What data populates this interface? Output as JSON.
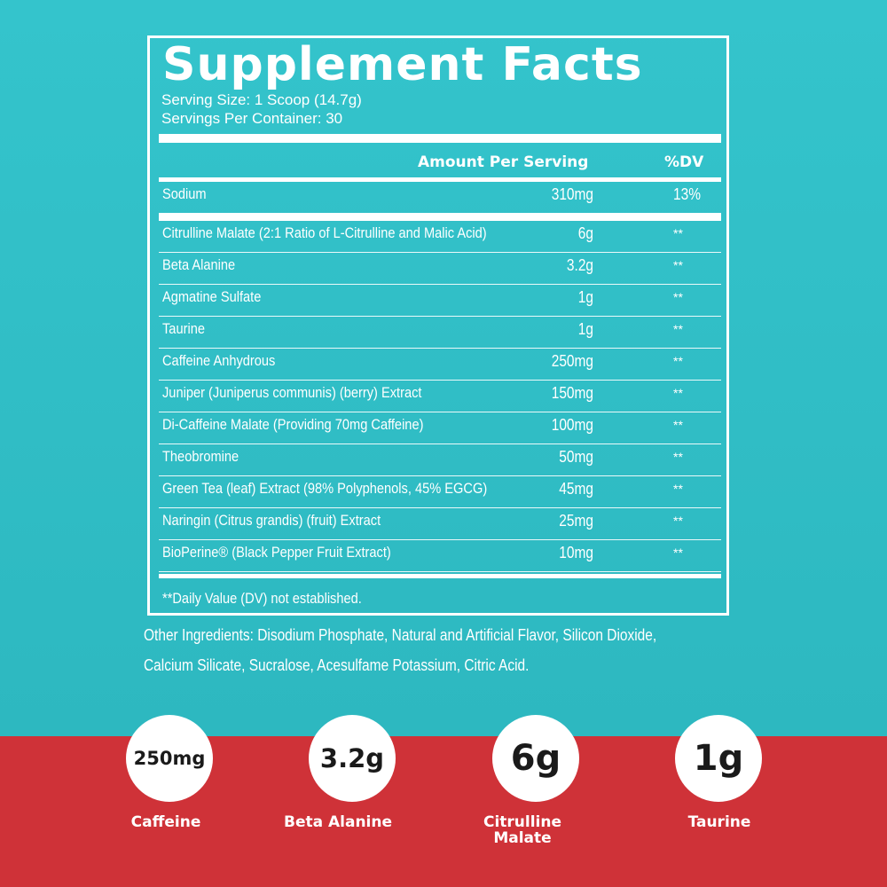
{
  "facts": {
    "title": "Supplement Facts",
    "serving_size": "Serving Size: 1 Scoop (14.7g)",
    "servings_per_container": "Servings Per Container: 30",
    "amount_header": "Amount Per Serving",
    "dv_header": "%DV",
    "sodium": {
      "name": "Sodium",
      "amount": "310mg",
      "dv": "13%"
    },
    "ingredients": [
      {
        "name": "Citrulline Malate (2:1 Ratio of L-Citrulline and Malic Acid)",
        "amount": "6g",
        "dv": "**"
      },
      {
        "name": "Beta Alanine",
        "amount": "3.2g",
        "dv": "**"
      },
      {
        "name": "Agmatine Sulfate",
        "amount": "1g",
        "dv": "**"
      },
      {
        "name": "Taurine",
        "amount": "1g",
        "dv": "**"
      },
      {
        "name": "Caffeine Anhydrous",
        "amount": "250mg",
        "dv": "**"
      },
      {
        "name": "Juniper (Juniperus communis) (berry) Extract",
        "amount": "150mg",
        "dv": "**"
      },
      {
        "name": "Di-Caffeine Malate (Providing 70mg Caffeine)",
        "amount": "100mg",
        "dv": "**"
      },
      {
        "name": "Theobromine",
        "amount": "50mg",
        "dv": "**"
      },
      {
        "name": "Green Tea (leaf) Extract (98% Polyphenols, 45% EGCG)",
        "amount": "45mg",
        "dv": "**"
      },
      {
        "name": "Naringin (Citrus grandis) (fruit) Extract",
        "amount": "25mg",
        "dv": "**"
      },
      {
        "name": "BioPerine® (Black Pepper Fruit Extract)",
        "amount": "10mg",
        "dv": "**"
      }
    ],
    "footnote": "**Daily Value (DV) not established."
  },
  "other_ingredients": {
    "line1": "Other Ingredients: Disodium Phosphate, Natural and Artificial Flavor, Silicon Dioxide,",
    "line2": "Calcium Silicate, Sucralose, Acesulfame Potassium, Citric Acid."
  },
  "badges": [
    {
      "value": "250mg",
      "label": "Caffeine"
    },
    {
      "value": "3.2g",
      "label": "Beta Alanine"
    },
    {
      "value": "6g",
      "label": "Citrulline Malate"
    },
    {
      "value": "1g",
      "label": "Taurine"
    }
  ],
  "colors": {
    "teal": "#2fb9c1",
    "red": "#cf3238",
    "white": "#ffffff"
  }
}
